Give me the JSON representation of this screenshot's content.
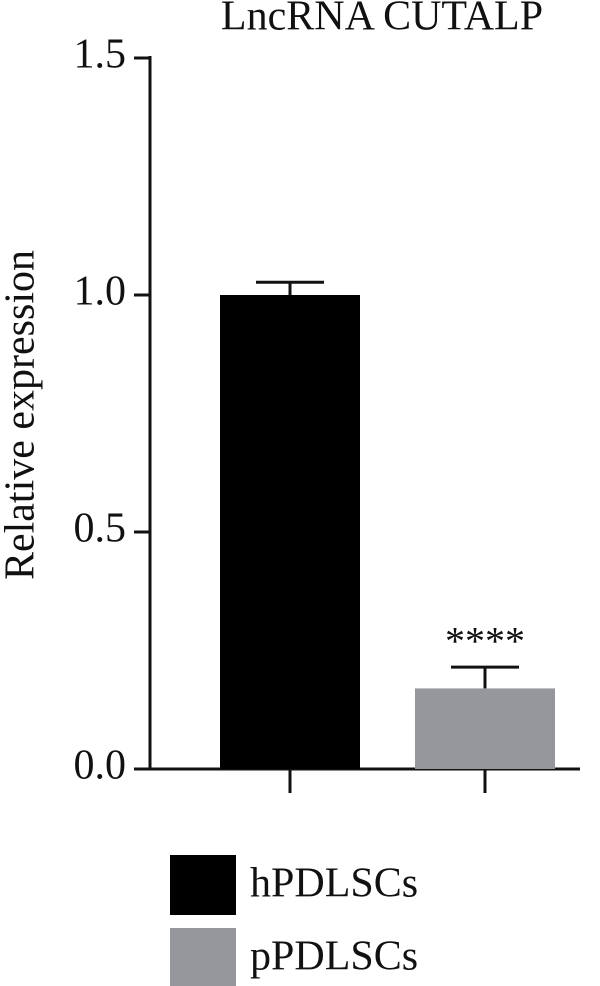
{
  "chart_data": {
    "type": "bar",
    "title": "LncRNA CUTALP",
    "ylabel": "Relative expression",
    "series": [
      {
        "name": "hPDLSCs",
        "color": "#000000",
        "values": [
          1.0
        ],
        "errors": [
          0.027
        ]
      },
      {
        "name": "pPDLSCs",
        "color": "#96979c",
        "values": [
          0.17
        ],
        "errors": [
          0.045
        ]
      }
    ],
    "annotations": [
      {
        "text": "****",
        "series": 1
      }
    ],
    "ylim": [
      0,
      1.5
    ],
    "yticks": [
      {
        "value": 0,
        "label": "0.0"
      },
      {
        "value": 0.5,
        "label": "0.5"
      },
      {
        "value": 1.0,
        "label": "1.0"
      },
      {
        "value": 1.5,
        "label": "1.5"
      }
    ],
    "legend": "bottom"
  }
}
